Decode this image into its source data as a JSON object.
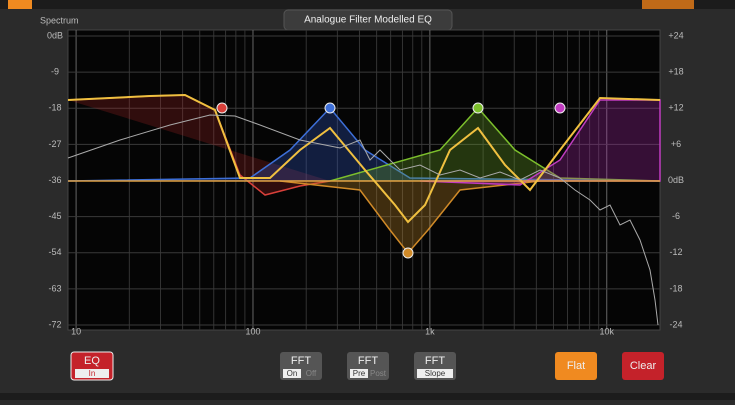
{
  "header": {
    "title": "Analogue Filter Modelled EQ",
    "panel_label": "Spectrum"
  },
  "plot": {
    "log_x": true,
    "grid": true,
    "xlim": [
      9,
      20000
    ],
    "xticks": [
      10,
      100,
      {
        "value": 1000,
        "label": "1k"
      },
      {
        "value": 10000,
        "label": "10k"
      }
    ],
    "ylim": [
      -72,
      0
    ],
    "yticks": [
      {
        "value": 0,
        "label": "0dB"
      },
      -9,
      -18,
      -27,
      -36,
      -45,
      -54,
      -63,
      -72
    ],
    "y2lim": [
      -24,
      24
    ],
    "y2ticks": [
      {
        "value": 24,
        "label": "+24"
      },
      {
        "value": 18,
        "label": "+18"
      },
      {
        "value": 12,
        "label": "+12"
      },
      {
        "value": 6,
        "label": "+6"
      },
      {
        "value": 0,
        "label": "0dB"
      },
      -6,
      -12,
      -18,
      -24
    ]
  },
  "buttons": [
    {
      "title": "EQ",
      "options": [
        "In"
      ]
    },
    {
      "title": "FFT",
      "options": [
        "On",
        "Off"
      ]
    },
    {
      "title": "FFT",
      "options": [
        "Pre",
        "Post"
      ]
    },
    {
      "title": "FFT",
      "options": [
        "Slope"
      ]
    },
    {
      "title": "Flat"
    },
    {
      "title": "Clear"
    }
  ]
}
